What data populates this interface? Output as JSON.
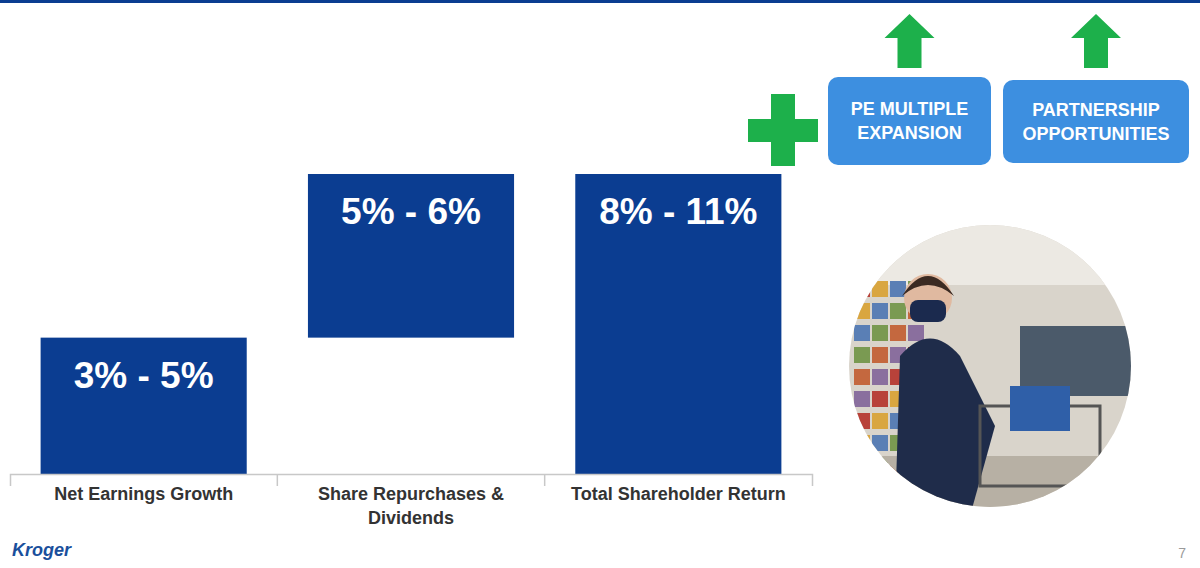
{
  "chart_data": {
    "type": "waterfall",
    "categories": [
      "Net Earnings Growth",
      "Share Repurchases & Dividends",
      "Total Shareholder Return"
    ],
    "values": [
      5,
      6,
      11
    ],
    "value_labels": [
      "3% - 5%",
      "5% - 6%",
      "8% - 11%"
    ],
    "data_labels": true,
    "color": "#0b3d91",
    "ylim": [
      0,
      11
    ],
    "tick_labels": "x",
    "annotations": [
      "PE MULTIPLE EXPANSION",
      "PARTNERSHIP OPPORTUNITIES"
    ]
  },
  "footer": {
    "logo": "Kroger",
    "page_number": 7
  }
}
